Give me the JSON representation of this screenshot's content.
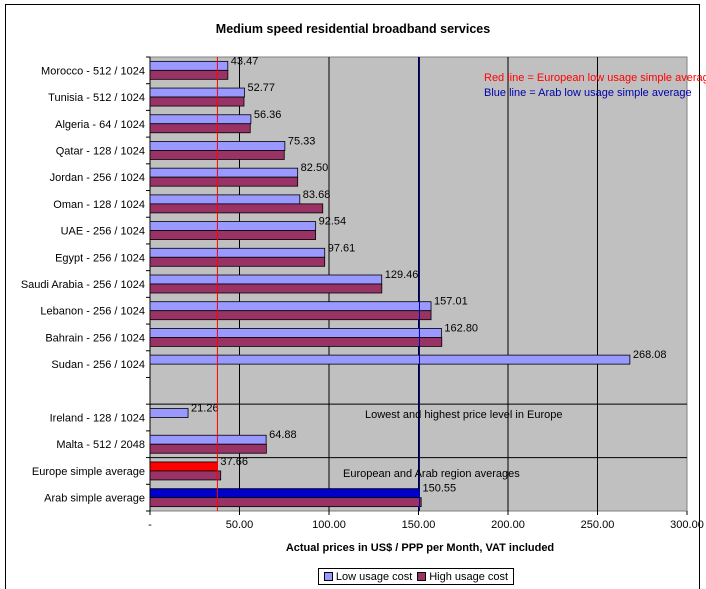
{
  "chart_data": {
    "type": "bar",
    "orientation": "horizontal",
    "title": "Medium speed residential broadband services",
    "xlabel": "Actual prices in US$ / PPP per Month, VAT included",
    "xlim": [
      0,
      300
    ],
    "xticks": [
      "-",
      "50.00",
      "100.00",
      "150.00",
      "200.00",
      "250.00",
      "300.00"
    ],
    "grid": true,
    "legend_position": "bottom-center",
    "categories": [
      "Morocco - 512 / 1024",
      "Tunisia - 512 / 1024",
      "Algeria - 64 / 1024",
      "Qatar - 128 / 1024",
      "Jordan - 256 / 1024",
      "Oman - 128 / 1024",
      "UAE - 256 / 1024",
      "Egypt - 256 / 1024",
      "Saudi Arabia - 256 / 1024",
      "Lebanon - 256 / 1024",
      "Bahrain - 256 / 1024",
      "Sudan - 256 / 1024",
      "",
      "Ireland - 128 / 1024",
      "Malta - 512 / 2048",
      "Europe simple average",
      "Arab simple average"
    ],
    "series": [
      {
        "name": "Low usage cost",
        "values": [
          43.47,
          52.77,
          56.36,
          75.33,
          82.5,
          83.68,
          92.54,
          97.61,
          129.46,
          157.01,
          162.8,
          268.08,
          null,
          21.26,
          64.88,
          37.66,
          150.55
        ]
      },
      {
        "name": "High usage cost",
        "values": [
          43.5,
          52.5,
          56.0,
          75.0,
          82.5,
          96.5,
          92.5,
          97.6,
          129.5,
          157.0,
          163.0,
          null,
          null,
          null,
          65.0,
          39.5,
          151.5
        ]
      }
    ],
    "data_labels": [
      "43.47",
      "52.77",
      "56.36",
      "75.33",
      "82.50",
      "83.68",
      "92.54",
      "97.61",
      "129.46",
      "157.01",
      "162.80",
      "268.08",
      "",
      "21.26",
      "64.88",
      "37.66",
      "150.55"
    ],
    "reference_lines": [
      {
        "label": "Red line = European low usage simple average",
        "value": 37.66,
        "color": "#ff0000"
      },
      {
        "label": "Blue line = Arab low usage simple average",
        "value": 150.55,
        "color": "#0000aa"
      }
    ],
    "section_dividers_after": [
      12,
      14
    ],
    "annotations": [
      "Lowest and highest price level in Europe",
      "European and Arab region averages"
    ],
    "colors": {
      "low": "#9999ff",
      "high": "#993366",
      "europe_avg_low": "#ff0000",
      "arab_avg_low": "#0000cc",
      "plot_bg": "#c0c0c0"
    }
  }
}
